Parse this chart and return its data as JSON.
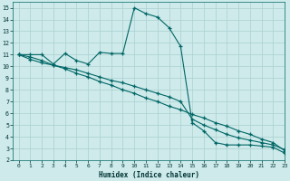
{
  "xlabel": "Humidex (Indice chaleur)",
  "bg_color": "#ceeaea",
  "line_color": "#006666",
  "grid_color": "#aacfcf",
  "xlim": [
    -0.5,
    23
  ],
  "ylim": [
    2,
    15.5
  ],
  "xticks": [
    0,
    1,
    2,
    3,
    4,
    5,
    6,
    7,
    8,
    9,
    10,
    11,
    12,
    13,
    14,
    15,
    16,
    17,
    18,
    19,
    20,
    21,
    22,
    23
  ],
  "yticks": [
    2,
    3,
    4,
    5,
    6,
    7,
    8,
    9,
    10,
    11,
    12,
    13,
    14,
    15
  ],
  "line1_x": [
    0,
    1,
    2,
    3,
    4,
    5,
    6,
    7,
    8,
    9,
    10,
    11,
    12,
    13,
    14,
    15,
    16,
    17,
    18,
    19,
    20,
    21,
    22,
    23
  ],
  "line1_y": [
    11.0,
    11.0,
    11.0,
    10.2,
    11.1,
    10.5,
    10.2,
    11.2,
    11.1,
    11.1,
    15.0,
    14.5,
    14.2,
    13.3,
    11.7,
    5.2,
    4.5,
    3.5,
    3.3,
    3.3,
    3.3,
    3.2,
    3.1,
    2.6
  ],
  "line2_x": [
    0,
    1,
    2,
    3,
    4,
    5,
    6,
    7,
    8,
    9,
    10,
    11,
    12,
    13,
    14,
    15,
    16,
    17,
    18,
    19,
    20,
    21,
    22,
    23
  ],
  "line2_y": [
    11.0,
    10.6,
    10.3,
    10.1,
    9.8,
    9.4,
    9.1,
    8.7,
    8.4,
    8.0,
    7.7,
    7.3,
    7.0,
    6.6,
    6.3,
    5.9,
    5.6,
    5.2,
    4.9,
    4.5,
    4.2,
    3.8,
    3.5,
    2.8
  ],
  "line3_x": [
    0,
    1,
    2,
    3,
    4,
    5,
    6,
    7,
    8,
    9,
    10,
    11,
    12,
    13,
    14,
    15,
    16,
    17,
    18,
    19,
    20,
    21,
    22,
    23
  ],
  "line3_y": [
    11.0,
    10.8,
    10.5,
    10.1,
    9.9,
    9.7,
    9.4,
    9.1,
    8.8,
    8.6,
    8.3,
    8.0,
    7.7,
    7.4,
    7.0,
    5.5,
    5.0,
    4.6,
    4.2,
    3.9,
    3.7,
    3.5,
    3.3,
    2.9
  ]
}
